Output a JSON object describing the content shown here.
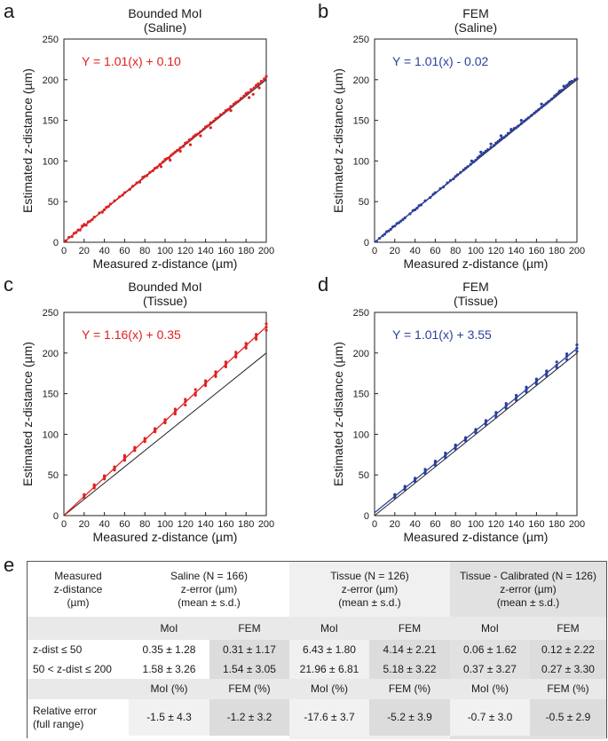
{
  "chart_data": [
    {
      "panel": "a",
      "type": "scatter",
      "title": "Bounded MoI",
      "subtitle": "(Saline)",
      "xlabel": "Measured z-distance (µm)",
      "ylabel": "Estimated z-distance (µm)",
      "xlim": [
        0,
        200
      ],
      "ylim": [
        0,
        250
      ],
      "xticks": [
        0,
        20,
        40,
        60,
        80,
        100,
        120,
        140,
        160,
        180,
        200
      ],
      "yticks": [
        0,
        50,
        100,
        150,
        200,
        250
      ],
      "color": "#e02020",
      "equation": "Y = 1.01(x) + 0.10",
      "fit": {
        "slope": 1.01,
        "intercept": 0.1
      },
      "identity_line": true,
      "points": [
        [
          2,
          2
        ],
        [
          5,
          6
        ],
        [
          8,
          7
        ],
        [
          10,
          11
        ],
        [
          12,
          12
        ],
        [
          14,
          15
        ],
        [
          16,
          15
        ],
        [
          18,
          20
        ],
        [
          20,
          22
        ],
        [
          22,
          21
        ],
        [
          24,
          25
        ],
        [
          26,
          26
        ],
        [
          28,
          28
        ],
        [
          30,
          31
        ],
        [
          35,
          36
        ],
        [
          38,
          37
        ],
        [
          40,
          40
        ],
        [
          42,
          43
        ],
        [
          44,
          44
        ],
        [
          46,
          47
        ],
        [
          50,
          51
        ],
        [
          55,
          56
        ],
        [
          58,
          58
        ],
        [
          60,
          61
        ],
        [
          65,
          65
        ],
        [
          68,
          69
        ],
        [
          72,
          73
        ],
        [
          75,
          74
        ],
        [
          78,
          80
        ],
        [
          80,
          81
        ],
        [
          82,
          82
        ],
        [
          85,
          86
        ],
        [
          88,
          88
        ],
        [
          90,
          91
        ],
        [
          92,
          92
        ],
        [
          95,
          96
        ],
        [
          98,
          99
        ],
        [
          100,
          102
        ],
        [
          102,
          103
        ],
        [
          104,
          104
        ],
        [
          106,
          107
        ],
        [
          108,
          109
        ],
        [
          110,
          111
        ],
        [
          112,
          113
        ],
        [
          115,
          116
        ],
        [
          118,
          118
        ],
        [
          120,
          122
        ],
        [
          122,
          123
        ],
        [
          124,
          126
        ],
        [
          126,
          127
        ],
        [
          128,
          130
        ],
        [
          130,
          132
        ],
        [
          132,
          133
        ],
        [
          135,
          136
        ],
        [
          138,
          139
        ],
        [
          140,
          142
        ],
        [
          142,
          143
        ],
        [
          145,
          147
        ],
        [
          148,
          149
        ],
        [
          150,
          152
        ],
        [
          152,
          153
        ],
        [
          155,
          157
        ],
        [
          158,
          159
        ],
        [
          160,
          162
        ],
        [
          162,
          163
        ],
        [
          165,
          167
        ],
        [
          168,
          170
        ],
        [
          170,
          172
        ],
        [
          172,
          173
        ],
        [
          175,
          177
        ],
        [
          178,
          180
        ],
        [
          180,
          183
        ],
        [
          182,
          184
        ],
        [
          185,
          188
        ],
        [
          188,
          190
        ],
        [
          190,
          193
        ],
        [
          192,
          195
        ],
        [
          195,
          198
        ],
        [
          198,
          201
        ],
        [
          200,
          204
        ],
        [
          183,
          178
        ],
        [
          187,
          182
        ],
        [
          193,
          190
        ],
        [
          125,
          120
        ],
        [
          135,
          131
        ],
        [
          145,
          141
        ],
        [
          96,
          93
        ],
        [
          105,
          101
        ],
        [
          115,
          112
        ],
        [
          165,
          162
        ]
      ]
    },
    {
      "panel": "b",
      "type": "scatter",
      "title": "FEM",
      "subtitle": "(Saline)",
      "xlabel": "Measured z-distance (µm)",
      "ylabel": "Estimated z-distance (µm)",
      "xlim": [
        0,
        200
      ],
      "ylim": [
        0,
        250
      ],
      "xticks": [
        0,
        20,
        40,
        60,
        80,
        100,
        120,
        140,
        160,
        180,
        200
      ],
      "yticks": [
        0,
        50,
        100,
        150,
        200,
        250
      ],
      "color": "#2b3f9c",
      "equation": "Y = 1.01(x) - 0.02",
      "fit": {
        "slope": 1.01,
        "intercept": -0.02
      },
      "identity_line": true,
      "points": [
        [
          2,
          1
        ],
        [
          5,
          5
        ],
        [
          8,
          8
        ],
        [
          10,
          10
        ],
        [
          12,
          13
        ],
        [
          14,
          14
        ],
        [
          16,
          16
        ],
        [
          18,
          19
        ],
        [
          20,
          20
        ],
        [
          22,
          23
        ],
        [
          24,
          24
        ],
        [
          26,
          26
        ],
        [
          28,
          28
        ],
        [
          30,
          30
        ],
        [
          35,
          35
        ],
        [
          38,
          39
        ],
        [
          40,
          40
        ],
        [
          42,
          42
        ],
        [
          44,
          45
        ],
        [
          46,
          46
        ],
        [
          50,
          51
        ],
        [
          55,
          55
        ],
        [
          58,
          59
        ],
        [
          60,
          61
        ],
        [
          65,
          66
        ],
        [
          68,
          68
        ],
        [
          72,
          73
        ],
        [
          75,
          76
        ],
        [
          78,
          78
        ],
        [
          80,
          81
        ],
        [
          82,
          83
        ],
        [
          85,
          86
        ],
        [
          88,
          89
        ],
        [
          90,
          91
        ],
        [
          92,
          93
        ],
        [
          95,
          96
        ],
        [
          98,
          99
        ],
        [
          100,
          101
        ],
        [
          102,
          104
        ],
        [
          104,
          106
        ],
        [
          106,
          108
        ],
        [
          108,
          110
        ],
        [
          110,
          112
        ],
        [
          112,
          114
        ],
        [
          115,
          117
        ],
        [
          118,
          119
        ],
        [
          120,
          122
        ],
        [
          122,
          124
        ],
        [
          124,
          126
        ],
        [
          126,
          128
        ],
        [
          128,
          129
        ],
        [
          130,
          131
        ],
        [
          132,
          134
        ],
        [
          135,
          137
        ],
        [
          138,
          140
        ],
        [
          140,
          141
        ],
        [
          142,
          143
        ],
        [
          145,
          146
        ],
        [
          148,
          149
        ],
        [
          150,
          151
        ],
        [
          152,
          153
        ],
        [
          155,
          156
        ],
        [
          158,
          159
        ],
        [
          160,
          161
        ],
        [
          162,
          163
        ],
        [
          165,
          166
        ],
        [
          168,
          169
        ],
        [
          170,
          171
        ],
        [
          172,
          173
        ],
        [
          175,
          176
        ],
        [
          178,
          180
        ],
        [
          180,
          182
        ],
        [
          182,
          184
        ],
        [
          185,
          187
        ],
        [
          188,
          190
        ],
        [
          190,
          193
        ],
        [
          192,
          195
        ],
        [
          195,
          198
        ],
        [
          198,
          200
        ],
        [
          200,
          201
        ],
        [
          183,
          186
        ],
        [
          187,
          192
        ],
        [
          193,
          197
        ],
        [
          125,
          131
        ],
        [
          135,
          139
        ],
        [
          145,
          150
        ],
        [
          96,
          100
        ],
        [
          105,
          111
        ],
        [
          115,
          121
        ],
        [
          165,
          170
        ]
      ]
    },
    {
      "panel": "c",
      "type": "scatter",
      "title": "Bounded MoI",
      "subtitle": "(Tissue)",
      "xlabel": "Measured z-distance (µm)",
      "ylabel": "Estimated z-distance (µm)",
      "xlim": [
        0,
        200
      ],
      "ylim": [
        0,
        250
      ],
      "xticks": [
        0,
        20,
        40,
        60,
        80,
        100,
        120,
        140,
        160,
        180,
        200
      ],
      "yticks": [
        0,
        50,
        100,
        150,
        200,
        250
      ],
      "color": "#e02020",
      "equation": "Y = 1.16(x) + 0.35",
      "fit": {
        "slope": 1.16,
        "intercept": 0.35
      },
      "identity_line": true,
      "points": [
        [
          20,
          22
        ],
        [
          20,
          24
        ],
        [
          20,
          26
        ],
        [
          30,
          34
        ],
        [
          30,
          36
        ],
        [
          30,
          38
        ],
        [
          40,
          45
        ],
        [
          40,
          47
        ],
        [
          40,
          49
        ],
        [
          50,
          56
        ],
        [
          50,
          58
        ],
        [
          50,
          60
        ],
        [
          60,
          68
        ],
        [
          60,
          70
        ],
        [
          60,
          72
        ],
        [
          60,
          74
        ],
        [
          70,
          80
        ],
        [
          70,
          82
        ],
        [
          70,
          84
        ],
        [
          80,
          91
        ],
        [
          80,
          93
        ],
        [
          80,
          95
        ],
        [
          90,
          103
        ],
        [
          90,
          105
        ],
        [
          90,
          107
        ],
        [
          100,
          114
        ],
        [
          100,
          116
        ],
        [
          100,
          118
        ],
        [
          110,
          125
        ],
        [
          110,
          128
        ],
        [
          110,
          131
        ],
        [
          120,
          136
        ],
        [
          120,
          140
        ],
        [
          120,
          143
        ],
        [
          130,
          148
        ],
        [
          130,
          151
        ],
        [
          130,
          155
        ],
        [
          140,
          160
        ],
        [
          140,
          163
        ],
        [
          140,
          166
        ],
        [
          150,
          171
        ],
        [
          150,
          174
        ],
        [
          150,
          177
        ],
        [
          160,
          183
        ],
        [
          160,
          186
        ],
        [
          160,
          189
        ],
        [
          170,
          195
        ],
        [
          170,
          198
        ],
        [
          170,
          201
        ],
        [
          180,
          206
        ],
        [
          180,
          209
        ],
        [
          180,
          212
        ],
        [
          190,
          217
        ],
        [
          190,
          220
        ],
        [
          190,
          223
        ],
        [
          200,
          228
        ],
        [
          200,
          232
        ],
        [
          200,
          236
        ]
      ]
    },
    {
      "panel": "d",
      "type": "scatter",
      "title": "FEM",
      "subtitle": "(Tissue)",
      "xlabel": "Measured z-distance (µm)",
      "ylabel": "Estimated z-distance (µm)",
      "xlim": [
        0,
        200
      ],
      "ylim": [
        0,
        250
      ],
      "xticks": [
        0,
        20,
        40,
        60,
        80,
        100,
        120,
        140,
        160,
        180,
        200
      ],
      "yticks": [
        0,
        50,
        100,
        150,
        200,
        250
      ],
      "color": "#2b3f9c",
      "equation": "Y = 1.01(x) + 3.55",
      "fit": {
        "slope": 1.01,
        "intercept": 3.55
      },
      "identity_line": true,
      "points": [
        [
          20,
          22
        ],
        [
          20,
          24
        ],
        [
          20,
          26
        ],
        [
          30,
          32
        ],
        [
          30,
          34
        ],
        [
          30,
          36
        ],
        [
          40,
          42
        ],
        [
          40,
          44
        ],
        [
          40,
          46
        ],
        [
          50,
          52
        ],
        [
          50,
          54
        ],
        [
          50,
          57
        ],
        [
          60,
          62
        ],
        [
          60,
          65
        ],
        [
          60,
          67
        ],
        [
          70,
          71
        ],
        [
          70,
          74
        ],
        [
          70,
          77
        ],
        [
          80,
          82
        ],
        [
          80,
          85
        ],
        [
          80,
          87
        ],
        [
          90,
          92
        ],
        [
          90,
          94
        ],
        [
          90,
          96
        ],
        [
          100,
          102
        ],
        [
          100,
          104
        ],
        [
          100,
          106
        ],
        [
          110,
          112
        ],
        [
          110,
          115
        ],
        [
          110,
          117
        ],
        [
          120,
          121
        ],
        [
          120,
          124
        ],
        [
          120,
          127
        ],
        [
          130,
          132
        ],
        [
          130,
          135
        ],
        [
          130,
          138
        ],
        [
          140,
          142
        ],
        [
          140,
          145
        ],
        [
          140,
          148
        ],
        [
          150,
          152
        ],
        [
          150,
          155
        ],
        [
          150,
          158
        ],
        [
          160,
          162
        ],
        [
          160,
          165
        ],
        [
          160,
          168
        ],
        [
          170,
          172
        ],
        [
          170,
          175
        ],
        [
          170,
          178
        ],
        [
          180,
          182
        ],
        [
          180,
          185
        ],
        [
          180,
          189
        ],
        [
          190,
          192
        ],
        [
          190,
          196
        ],
        [
          190,
          199
        ],
        [
          200,
          202
        ],
        [
          200,
          206
        ],
        [
          200,
          210
        ]
      ]
    }
  ],
  "panel_labels": [
    "a",
    "b",
    "c",
    "d",
    "e"
  ],
  "table": {
    "header": {
      "measured": "Measured\nz-distance\n(µm)",
      "saline": "Saline (N = 166)\nz-error (µm)\n(mean ± s.d.)",
      "tissue": "Tissue (N = 126)\nz-error (µm)\n(mean ± s.d.)",
      "calibrated": "Tissue - Calibrated (N = 126)\nz-error (µm)\n(mean ± s.d.)"
    },
    "sub_header": [
      "MoI",
      "FEM",
      "MoI",
      "FEM",
      "MoI",
      "FEM"
    ],
    "rows": [
      {
        "label": "z-dist ≤ 50",
        "values": [
          "0.35 ± 1.28",
          "0.31 ± 1.17",
          "6.43 ± 1.80",
          "4.14 ± 2.21",
          "0.06 ± 1.62",
          "0.12 ± 2.22"
        ]
      },
      {
        "label": "50 < z-dist ≤ 200",
        "values": [
          "1.58 ± 3.26",
          "1.54 ± 3.05",
          "21.96 ± 6.81",
          "5.18 ± 3.22",
          "0.37 ± 3.27",
          "0.27 ± 3.30"
        ]
      }
    ],
    "pct_header": [
      "MoI (%)",
      "FEM (%)",
      "MoI (%)",
      "FEM (%)",
      "MoI (%)",
      "FEM (%)"
    ],
    "relative_row": {
      "label": "Relative error\n(full range)",
      "values": [
        "-1.5 ± 4.3",
        "-1.2 ± 3.2",
        "-17.6 ± 3.7",
        "-5.2 ± 3.9",
        "-0.7 ± 3.0",
        "-0.5 ± 2.9"
      ]
    }
  }
}
